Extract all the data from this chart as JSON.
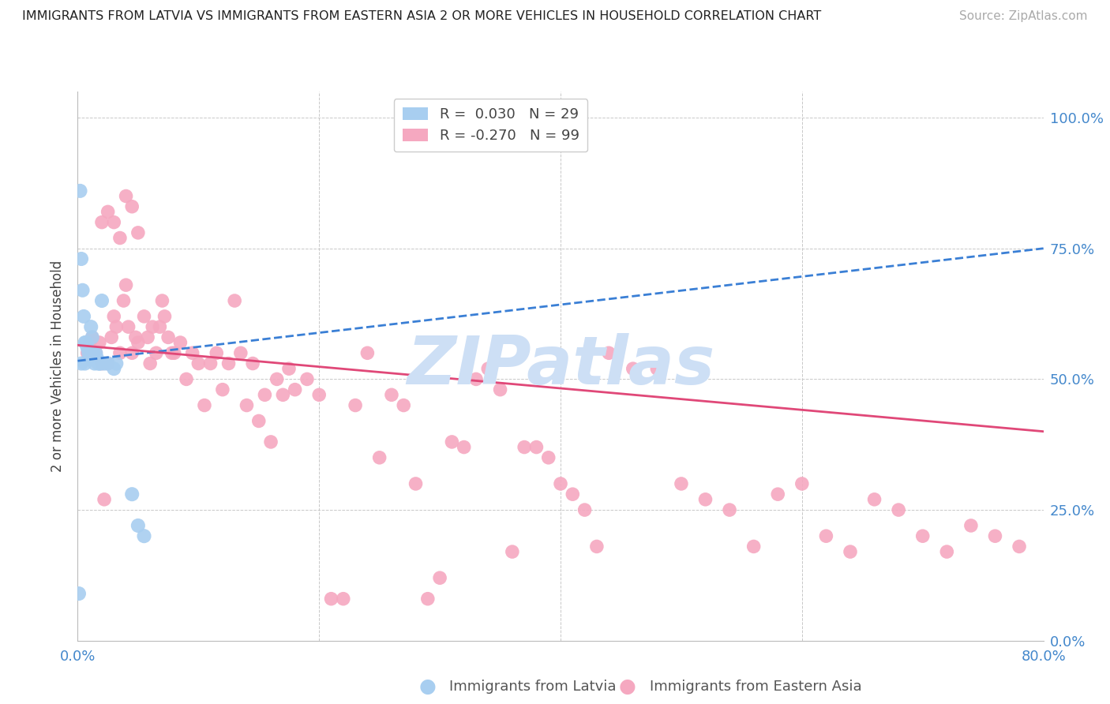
{
  "title": "IMMIGRANTS FROM LATVIA VS IMMIGRANTS FROM EASTERN ASIA 2 OR MORE VEHICLES IN HOUSEHOLD CORRELATION CHART",
  "source": "Source: ZipAtlas.com",
  "ylabel": "2 or more Vehicles in Household",
  "ytick_labels": [
    "0.0%",
    "25.0%",
    "50.0%",
    "75.0%",
    "100.0%"
  ],
  "ytick_values": [
    0.0,
    0.25,
    0.5,
    0.75,
    1.0
  ],
  "xmin": 0.0,
  "xmax": 0.8,
  "ymin": 0.0,
  "ymax": 1.05,
  "watermark": "ZIPatlas",
  "watermark_color": "#cddff5",
  "latvia_color": "#a8cef0",
  "eastern_asia_color": "#f5a8c0",
  "latvia_trendline_color": "#3a7fd5",
  "eastern_asia_trendline_color": "#e04878",
  "background_color": "#ffffff",
  "grid_color": "#c8c8c8",
  "right_axis_color": "#4488cc",
  "latvia_scatter_x": [
    0.001,
    0.002,
    0.003,
    0.004,
    0.005,
    0.006,
    0.007,
    0.008,
    0.009,
    0.01,
    0.011,
    0.012,
    0.013,
    0.014,
    0.015,
    0.016,
    0.017,
    0.018,
    0.019,
    0.02,
    0.022,
    0.025,
    0.03,
    0.032,
    0.045,
    0.05,
    0.055,
    0.003,
    0.006
  ],
  "latvia_scatter_y": [
    0.09,
    0.86,
    0.73,
    0.67,
    0.62,
    0.57,
    0.57,
    0.56,
    0.55,
    0.54,
    0.6,
    0.58,
    0.55,
    0.53,
    0.55,
    0.54,
    0.53,
    0.53,
    0.53,
    0.65,
    0.53,
    0.53,
    0.52,
    0.53,
    0.28,
    0.22,
    0.2,
    0.53,
    0.53
  ],
  "ea_scatter_x": [
    0.008,
    0.01,
    0.012,
    0.015,
    0.018,
    0.02,
    0.022,
    0.025,
    0.028,
    0.03,
    0.032,
    0.035,
    0.038,
    0.04,
    0.042,
    0.045,
    0.048,
    0.05,
    0.055,
    0.058,
    0.06,
    0.062,
    0.065,
    0.068,
    0.07,
    0.072,
    0.075,
    0.078,
    0.08,
    0.085,
    0.09,
    0.095,
    0.1,
    0.105,
    0.11,
    0.115,
    0.12,
    0.125,
    0.13,
    0.135,
    0.14,
    0.145,
    0.15,
    0.155,
    0.16,
    0.165,
    0.17,
    0.175,
    0.18,
    0.19,
    0.2,
    0.21,
    0.22,
    0.23,
    0.24,
    0.25,
    0.26,
    0.27,
    0.28,
    0.29,
    0.3,
    0.31,
    0.32,
    0.33,
    0.34,
    0.35,
    0.36,
    0.37,
    0.38,
    0.39,
    0.4,
    0.41,
    0.42,
    0.43,
    0.44,
    0.46,
    0.48,
    0.5,
    0.52,
    0.54,
    0.56,
    0.58,
    0.6,
    0.62,
    0.64,
    0.66,
    0.68,
    0.7,
    0.72,
    0.74,
    0.76,
    0.78,
    0.02,
    0.025,
    0.03,
    0.035,
    0.04,
    0.045,
    0.05
  ],
  "ea_scatter_y": [
    0.55,
    0.57,
    0.58,
    0.55,
    0.57,
    0.53,
    0.27,
    0.53,
    0.58,
    0.62,
    0.6,
    0.55,
    0.65,
    0.68,
    0.6,
    0.55,
    0.58,
    0.57,
    0.62,
    0.58,
    0.53,
    0.6,
    0.55,
    0.6,
    0.65,
    0.62,
    0.58,
    0.55,
    0.55,
    0.57,
    0.5,
    0.55,
    0.53,
    0.45,
    0.53,
    0.55,
    0.48,
    0.53,
    0.65,
    0.55,
    0.45,
    0.53,
    0.42,
    0.47,
    0.38,
    0.5,
    0.47,
    0.52,
    0.48,
    0.5,
    0.47,
    0.08,
    0.08,
    0.45,
    0.55,
    0.35,
    0.47,
    0.45,
    0.3,
    0.08,
    0.12,
    0.38,
    0.37,
    0.5,
    0.52,
    0.48,
    0.17,
    0.37,
    0.37,
    0.35,
    0.3,
    0.28,
    0.25,
    0.18,
    0.55,
    0.52,
    0.52,
    0.3,
    0.27,
    0.25,
    0.18,
    0.28,
    0.3,
    0.2,
    0.17,
    0.27,
    0.25,
    0.2,
    0.17,
    0.22,
    0.2,
    0.18,
    0.8,
    0.82,
    0.8,
    0.77,
    0.85,
    0.83,
    0.78
  ],
  "latvia_trend_x": [
    0.0,
    0.8
  ],
  "latvia_trend_y": [
    0.535,
    0.75
  ],
  "ea_trend_x": [
    0.0,
    0.8
  ],
  "ea_trend_y": [
    0.565,
    0.4
  ]
}
